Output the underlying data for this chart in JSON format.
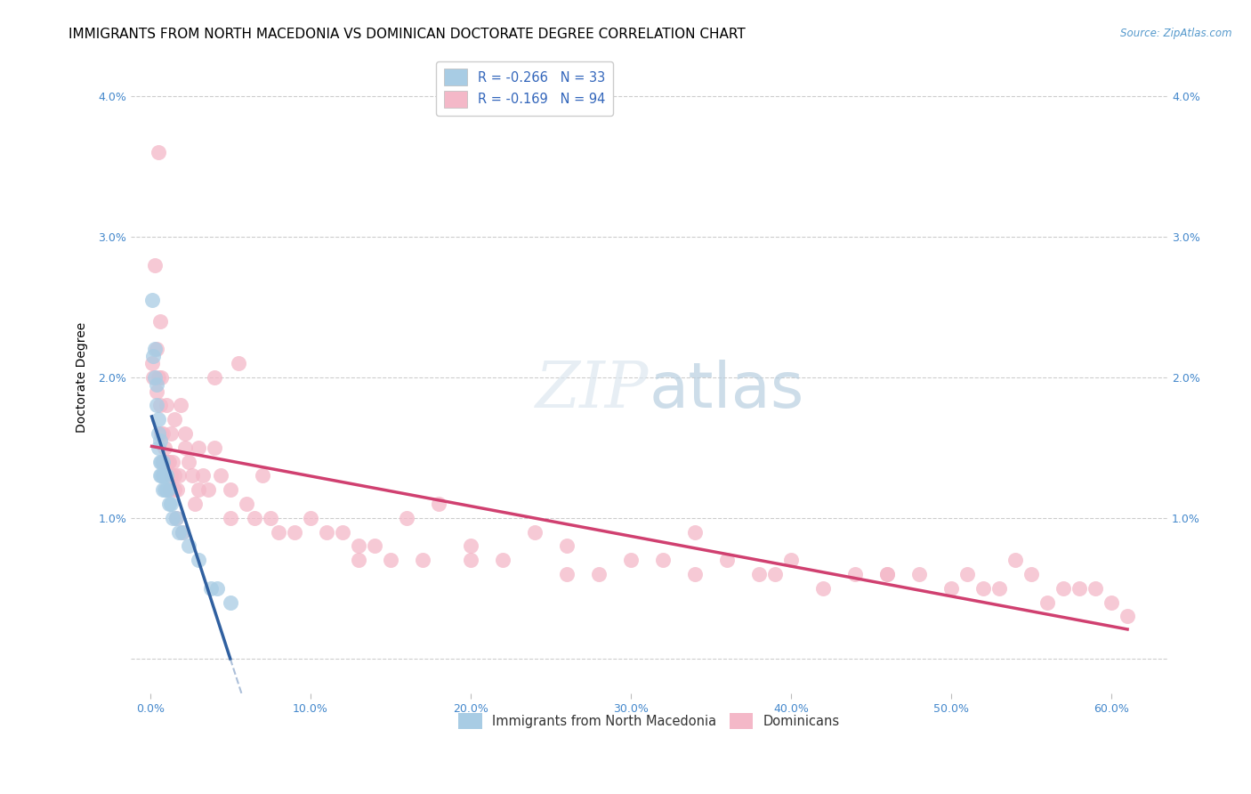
{
  "title": "IMMIGRANTS FROM NORTH MACEDONIA VS DOMINICAN DOCTORATE DEGREE CORRELATION CHART",
  "source": "Source: ZipAtlas.com",
  "ylabel": "Doctorate Degree",
  "x_ticks": [
    0.0,
    0.1,
    0.2,
    0.3,
    0.4,
    0.5,
    0.6
  ],
  "x_tick_labels": [
    "0.0%",
    "10.0%",
    "20.0%",
    "30.0%",
    "40.0%",
    "50.0%",
    "60.0%"
  ],
  "y_ticks": [
    0.0,
    0.01,
    0.02,
    0.03,
    0.04
  ],
  "y_tick_labels": [
    "",
    "1.0%",
    "2.0%",
    "3.0%",
    "4.0%"
  ],
  "xlim": [
    -0.012,
    0.635
  ],
  "ylim": [
    -0.0025,
    0.0425
  ],
  "color_blue": "#a8cce4",
  "color_pink": "#f4b8c8",
  "line_blue": "#3060a0",
  "line_pink": "#d04070",
  "bg_color": "#ffffff",
  "grid_color": "#c8c8c8",
  "title_fontsize": 11,
  "label_fontsize": 10,
  "tick_fontsize": 9,
  "legend_label1": "Immigrants from North Macedonia",
  "legend_label2": "Dominicans",
  "legend_R1": "-0.266",
  "legend_N1": "33",
  "legend_R2": "-0.169",
  "legend_N2": "94",
  "nm_x": [
    0.001,
    0.002,
    0.003,
    0.003,
    0.004,
    0.004,
    0.005,
    0.005,
    0.005,
    0.006,
    0.006,
    0.006,
    0.007,
    0.007,
    0.008,
    0.008,
    0.008,
    0.009,
    0.009,
    0.01,
    0.01,
    0.011,
    0.012,
    0.013,
    0.014,
    0.016,
    0.018,
    0.02,
    0.024,
    0.03,
    0.038,
    0.042,
    0.05
  ],
  "nm_y": [
    0.0255,
    0.0215,
    0.022,
    0.02,
    0.0195,
    0.018,
    0.017,
    0.016,
    0.015,
    0.0155,
    0.014,
    0.013,
    0.014,
    0.013,
    0.014,
    0.013,
    0.012,
    0.013,
    0.012,
    0.013,
    0.012,
    0.012,
    0.011,
    0.011,
    0.01,
    0.01,
    0.009,
    0.009,
    0.008,
    0.007,
    0.005,
    0.005,
    0.004
  ],
  "dom_x": [
    0.001,
    0.002,
    0.003,
    0.004,
    0.004,
    0.005,
    0.005,
    0.006,
    0.006,
    0.007,
    0.007,
    0.008,
    0.008,
    0.009,
    0.009,
    0.01,
    0.01,
    0.011,
    0.012,
    0.012,
    0.013,
    0.013,
    0.014,
    0.015,
    0.015,
    0.016,
    0.017,
    0.018,
    0.019,
    0.02,
    0.022,
    0.024,
    0.026,
    0.028,
    0.03,
    0.033,
    0.036,
    0.04,
    0.044,
    0.05,
    0.055,
    0.06,
    0.065,
    0.07,
    0.075,
    0.08,
    0.09,
    0.1,
    0.11,
    0.12,
    0.13,
    0.14,
    0.15,
    0.16,
    0.17,
    0.18,
    0.2,
    0.22,
    0.24,
    0.26,
    0.28,
    0.3,
    0.32,
    0.34,
    0.36,
    0.38,
    0.4,
    0.42,
    0.44,
    0.46,
    0.48,
    0.5,
    0.51,
    0.52,
    0.53,
    0.54,
    0.55,
    0.56,
    0.57,
    0.58,
    0.59,
    0.6,
    0.61,
    0.015,
    0.022,
    0.03,
    0.04,
    0.05,
    0.13,
    0.2,
    0.26,
    0.34,
    0.39,
    0.46
  ],
  "dom_y": [
    0.021,
    0.02,
    0.028,
    0.022,
    0.019,
    0.036,
    0.02,
    0.018,
    0.024,
    0.02,
    0.016,
    0.016,
    0.014,
    0.015,
    0.014,
    0.018,
    0.014,
    0.014,
    0.014,
    0.012,
    0.016,
    0.013,
    0.014,
    0.013,
    0.012,
    0.01,
    0.012,
    0.013,
    0.018,
    0.009,
    0.015,
    0.014,
    0.013,
    0.011,
    0.015,
    0.013,
    0.012,
    0.02,
    0.013,
    0.012,
    0.021,
    0.011,
    0.01,
    0.013,
    0.01,
    0.009,
    0.009,
    0.01,
    0.009,
    0.009,
    0.008,
    0.008,
    0.007,
    0.01,
    0.007,
    0.011,
    0.008,
    0.007,
    0.009,
    0.008,
    0.006,
    0.007,
    0.007,
    0.006,
    0.007,
    0.006,
    0.007,
    0.005,
    0.006,
    0.006,
    0.006,
    0.005,
    0.006,
    0.005,
    0.005,
    0.007,
    0.006,
    0.004,
    0.005,
    0.005,
    0.005,
    0.004,
    0.003,
    0.017,
    0.016,
    0.012,
    0.015,
    0.01,
    0.007,
    0.007,
    0.006,
    0.009,
    0.006,
    0.006
  ]
}
